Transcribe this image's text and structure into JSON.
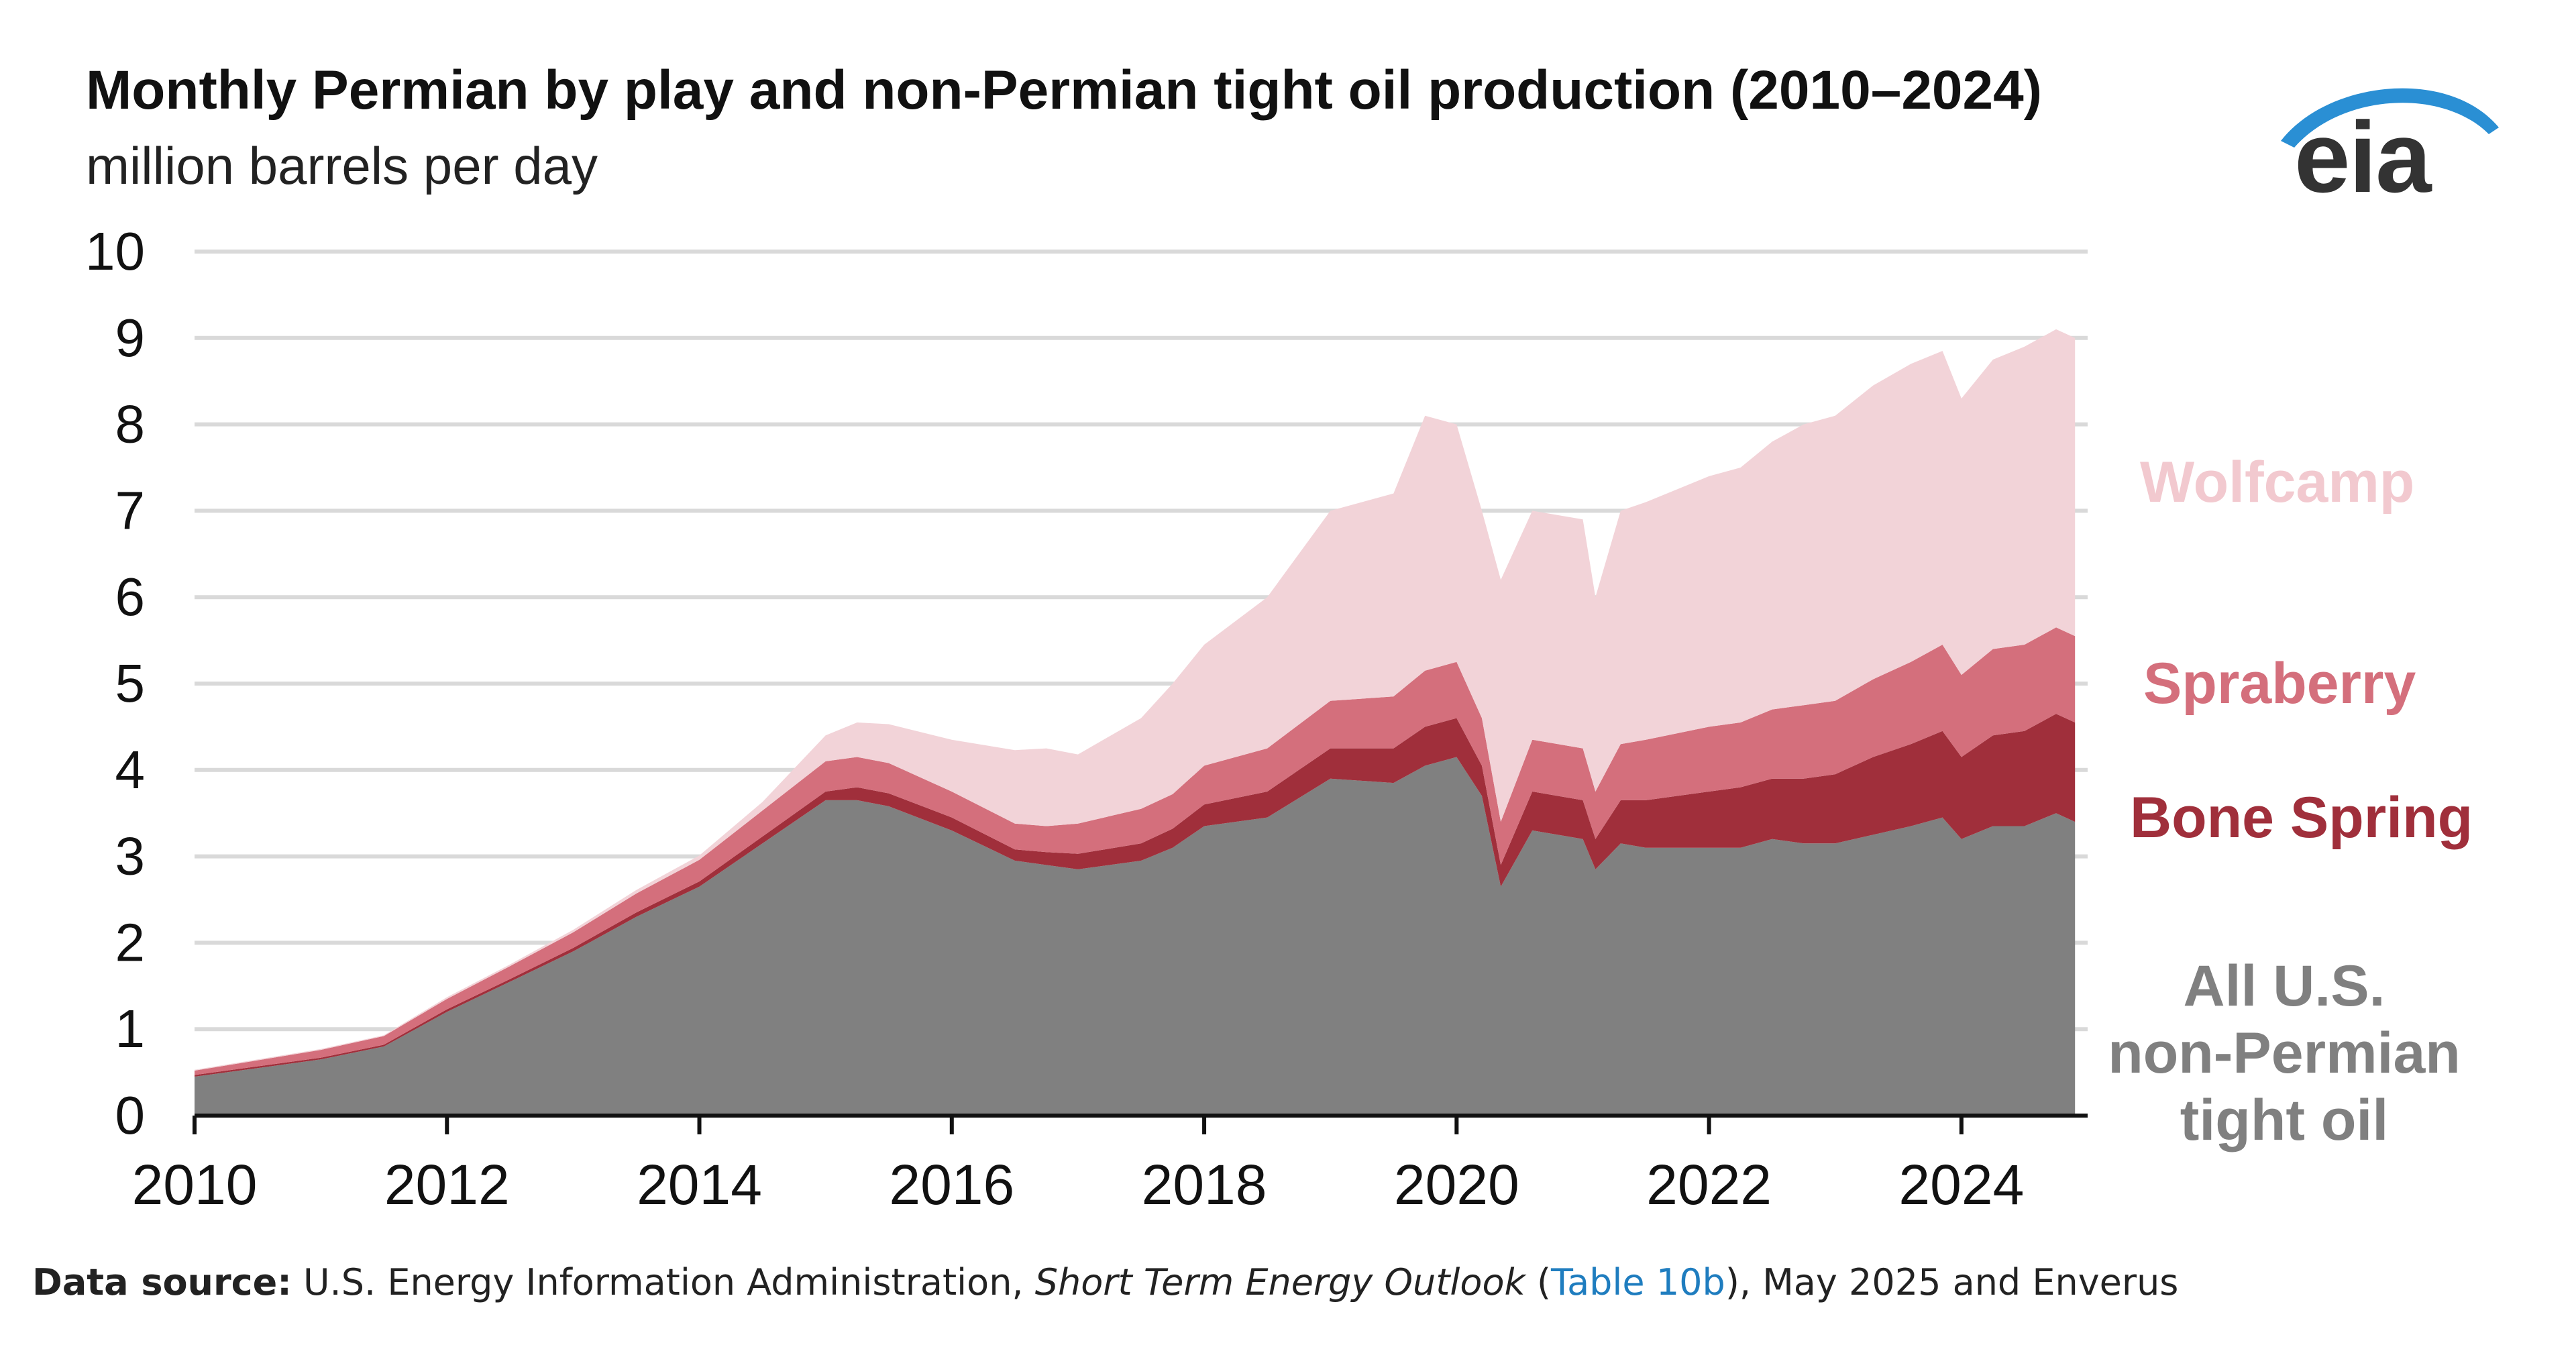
{
  "chart_data": {
    "type": "area",
    "stacked": true,
    "title": "Monthly Permian by play and non-Permian tight oil production (2010–2024)",
    "subtitle": "million barrels per day",
    "ylim": [
      0,
      10
    ],
    "y_ticks": [
      "0",
      "1",
      "2",
      "3",
      "4",
      "5",
      "6",
      "7",
      "8",
      "9",
      "10"
    ],
    "xlim": [
      2010,
      2025
    ],
    "x_ticks": [
      "2010",
      "2012",
      "2014",
      "2016",
      "2018",
      "2020",
      "2022",
      "2024"
    ],
    "x": [
      2010.0,
      2010.5,
      2011.0,
      2011.5,
      2012.0,
      2012.5,
      2013.0,
      2013.5,
      2014.0,
      2014.5,
      2015.0,
      2015.25,
      2015.5,
      2016.0,
      2016.5,
      2016.75,
      2017.0,
      2017.5,
      2017.75,
      2018.0,
      2018.5,
      2019.0,
      2019.5,
      2019.75,
      2020.0,
      2020.2,
      2020.35,
      2020.6,
      2021.0,
      2021.1,
      2021.3,
      2021.5,
      2022.0,
      2022.25,
      2022.5,
      2022.75,
      2023.0,
      2023.3,
      2023.6,
      2023.85,
      2024.0,
      2024.25,
      2024.5,
      2024.75,
      2024.9
    ],
    "series": [
      {
        "name": "All U.S. non-Permian tight oil",
        "color": "#808080",
        "values": [
          0.45,
          0.55,
          0.65,
          0.8,
          1.2,
          1.55,
          1.9,
          2.3,
          2.65,
          3.15,
          3.65,
          3.65,
          3.58,
          3.3,
          2.95,
          2.9,
          2.85,
          2.95,
          3.1,
          3.35,
          3.45,
          3.9,
          3.85,
          4.05,
          4.15,
          3.7,
          2.65,
          3.3,
          3.2,
          2.85,
          3.15,
          3.1,
          3.1,
          3.1,
          3.2,
          3.15,
          3.15,
          3.25,
          3.35,
          3.45,
          3.2,
          3.35,
          3.35,
          3.5,
          3.4
        ]
      },
      {
        "name": "Bone Spring",
        "color": "#a02f3b",
        "values": [
          0.02,
          0.02,
          0.02,
          0.02,
          0.03,
          0.03,
          0.04,
          0.05,
          0.06,
          0.08,
          0.1,
          0.15,
          0.15,
          0.15,
          0.13,
          0.15,
          0.18,
          0.2,
          0.22,
          0.25,
          0.3,
          0.35,
          0.4,
          0.45,
          0.45,
          0.35,
          0.25,
          0.45,
          0.45,
          0.35,
          0.5,
          0.55,
          0.65,
          0.7,
          0.7,
          0.75,
          0.8,
          0.9,
          0.95,
          1.0,
          0.95,
          1.05,
          1.1,
          1.15,
          1.15
        ]
      },
      {
        "name": "Spraberry",
        "color": "#d46f7c",
        "values": [
          0.05,
          0.07,
          0.09,
          0.1,
          0.12,
          0.15,
          0.18,
          0.22,
          0.25,
          0.3,
          0.35,
          0.35,
          0.35,
          0.3,
          0.3,
          0.3,
          0.35,
          0.4,
          0.4,
          0.45,
          0.5,
          0.55,
          0.6,
          0.65,
          0.65,
          0.55,
          0.5,
          0.6,
          0.6,
          0.55,
          0.65,
          0.7,
          0.75,
          0.75,
          0.8,
          0.85,
          0.85,
          0.9,
          0.95,
          1.0,
          0.95,
          1.0,
          1.0,
          1.0,
          1.0
        ]
      },
      {
        "name": "Wolfcamp",
        "color": "#f2d3d8",
        "values": [
          0.01,
          0.01,
          0.01,
          0.01,
          0.02,
          0.02,
          0.03,
          0.04,
          0.05,
          0.1,
          0.3,
          0.4,
          0.45,
          0.6,
          0.85,
          0.9,
          0.8,
          1.05,
          1.28,
          1.4,
          1.75,
          2.2,
          2.35,
          2.95,
          2.75,
          2.4,
          2.8,
          2.65,
          2.65,
          2.25,
          2.7,
          2.75,
          2.9,
          2.95,
          3.1,
          3.25,
          3.3,
          3.4,
          3.45,
          3.4,
          3.2,
          3.35,
          3.45,
          3.45,
          3.45
        ]
      }
    ],
    "series_labels": [
      "Wolfcamp",
      "Spraberry",
      "Bone Spring",
      "All U.S.",
      "non-Permian",
      "tight oil"
    ],
    "grid": true
  },
  "source": {
    "prefix": "Data source:",
    "text1": " U.S. Energy Information Administration, ",
    "publication": "Short Term Energy Outlook",
    "text2": " (",
    "link": "Table 10b",
    "text3": "), May 2025 and Enverus"
  },
  "logo_text": "eia"
}
